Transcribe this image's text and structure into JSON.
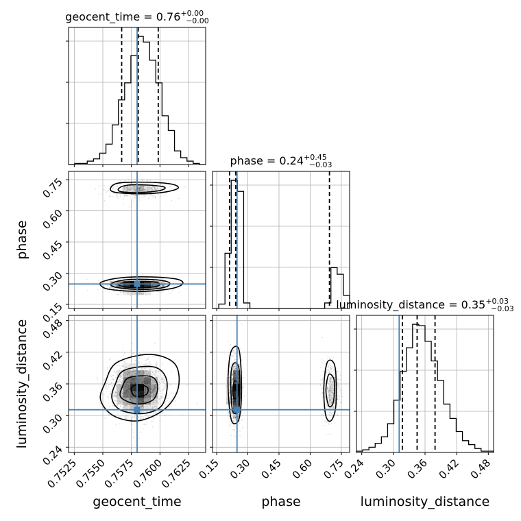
{
  "chart_data": {
    "type": "corner",
    "parameters": [
      {
        "name": "geocent_time",
        "label": "geocent_time",
        "title": "geocent_time = 0.76",
        "title_plus": "+0.00",
        "title_minus": "−0.00",
        "range": [
          0.752,
          0.764
        ],
        "ticks": [
          0.7525,
          0.755,
          0.7575,
          0.76,
          0.7625
        ],
        "tick_labels": [
          "0.7525",
          "0.7550",
          "0.7575",
          "0.7600",
          "0.7625"
        ],
        "truth": 0.758,
        "quantiles": [
          0.75665,
          0.7581,
          0.75985
        ],
        "hist_counts": [
          0,
          1,
          1,
          3,
          5,
          10,
          18,
          35,
          57,
          72,
          96,
          113,
          108,
          92,
          72,
          43,
          30,
          12,
          6,
          3,
          1,
          0
        ]
      },
      {
        "name": "phase",
        "label": "phase",
        "title": "phase = 0.24",
        "title_plus": "+0.45",
        "title_minus": "−0.03",
        "range": [
          0.13,
          0.79
        ],
        "ticks": [
          0.15,
          0.3,
          0.45,
          0.6,
          0.75
        ],
        "tick_labels": [
          "0.15",
          "0.30",
          "0.45",
          "0.60",
          "0.75"
        ],
        "truth": 0.248,
        "quantiles": [
          0.212,
          0.242,
          0.693
        ],
        "hist_counts": [
          0,
          4,
          50,
          116,
          106,
          5,
          0,
          0,
          0,
          0,
          0,
          0,
          0,
          0,
          0,
          0,
          0,
          0,
          5,
          37,
          31,
          12
        ]
      },
      {
        "name": "luminosity_distance",
        "label": "luminosity_distance",
        "title": "luminosity_distance = 0.35",
        "title_plus": "+0.03",
        "title_minus": "−0.03",
        "range": [
          0.23,
          0.49
        ],
        "ticks": [
          0.24,
          0.3,
          0.36,
          0.42,
          0.48
        ],
        "tick_labels": [
          "0.24",
          "0.30",
          "0.36",
          "0.42",
          "0.48"
        ],
        "truth": 0.311,
        "quantiles": [
          0.317,
          0.345,
          0.379
        ],
        "hist_counts": [
          1,
          2,
          4,
          7,
          12,
          22,
          40,
          62,
          80,
          98,
          97,
          85,
          70,
          55,
          37,
          26,
          16,
          9,
          6,
          3,
          1,
          1
        ]
      }
    ],
    "pairs": [
      {
        "x": "geocent_time",
        "y": "phase",
        "modes": [
          {
            "x": 0.7581,
            "y": 0.7,
            "sx": 0.0013,
            "sy": 0.02,
            "weight": 0.3
          },
          {
            "x": 0.758,
            "y": 0.24,
            "sx": 0.0013,
            "sy": 0.015,
            "weight": 0.7
          }
        ],
        "contours": [
          [
            [
              0.7564,
              0.708
            ],
            [
              0.7572,
              0.724
            ],
            [
              0.759,
              0.724
            ],
            [
              0.7604,
              0.714
            ],
            [
              0.76,
              0.698
            ],
            [
              0.7582,
              0.688
            ],
            [
              0.7566,
              0.692
            ]
          ],
          [
            [
              0.7557,
              0.712
            ],
            [
              0.7564,
              0.734
            ],
            [
              0.7586,
              0.738
            ],
            [
              0.7609,
              0.73
            ],
            [
              0.7616,
              0.71
            ],
            [
              0.7604,
              0.69
            ],
            [
              0.7582,
              0.682
            ],
            [
              0.756,
              0.69
            ]
          ],
          [
            [
              0.7565,
              0.248
            ],
            [
              0.7577,
              0.26
            ],
            [
              0.7594,
              0.258
            ],
            [
              0.76,
              0.246
            ],
            [
              0.7594,
              0.234
            ],
            [
              0.7578,
              0.23
            ],
            [
              0.7566,
              0.238
            ]
          ],
          [
            [
              0.7558,
              0.252
            ],
            [
              0.757,
              0.268
            ],
            [
              0.759,
              0.27
            ],
            [
              0.7606,
              0.26
            ],
            [
              0.7608,
              0.242
            ],
            [
              0.7598,
              0.226
            ],
            [
              0.7578,
              0.222
            ],
            [
              0.756,
              0.234
            ]
          ],
          [
            [
              0.755,
              0.26
            ],
            [
              0.7566,
              0.278
            ],
            [
              0.759,
              0.282
            ],
            [
              0.7614,
              0.272
            ],
            [
              0.762,
              0.25
            ],
            [
              0.761,
              0.226
            ],
            [
              0.7584,
              0.212
            ],
            [
              0.7556,
              0.222
            ],
            [
              0.7548,
              0.242
            ]
          ]
        ]
      },
      {
        "x": "geocent_time",
        "y": "luminosity_distance",
        "modes": [
          {
            "x": 0.7581,
            "y": 0.348,
            "sx": 0.0012,
            "sy": 0.027,
            "weight": 1.0
          }
        ],
        "contours": [
          [
            [
              0.7575,
              0.352
            ],
            [
              0.7581,
              0.359
            ],
            [
              0.7589,
              0.353
            ],
            [
              0.7588,
              0.34
            ],
            [
              0.7578,
              0.337
            ]
          ],
          [
            [
              0.7567,
              0.354
            ],
            [
              0.7573,
              0.372
            ],
            [
              0.7592,
              0.374
            ],
            [
              0.7598,
              0.356
            ],
            [
              0.7594,
              0.33
            ],
            [
              0.758,
              0.322
            ],
            [
              0.7566,
              0.334
            ]
          ],
          [
            [
              0.7561,
              0.36
            ],
            [
              0.7569,
              0.386
            ],
            [
              0.7595,
              0.392
            ],
            [
              0.7606,
              0.366
            ],
            [
              0.7602,
              0.32
            ],
            [
              0.7586,
              0.304
            ],
            [
              0.7566,
              0.31
            ],
            [
              0.7558,
              0.332
            ]
          ],
          [
            [
              0.7552,
              0.362
            ],
            [
              0.7562,
              0.4
            ],
            [
              0.7591,
              0.416
            ],
            [
              0.7613,
              0.398
            ],
            [
              0.7616,
              0.352
            ],
            [
              0.7604,
              0.312
            ],
            [
              0.7581,
              0.29
            ],
            [
              0.7559,
              0.3
            ],
            [
              0.7548,
              0.33
            ]
          ]
        ]
      },
      {
        "x": "phase",
        "y": "luminosity_distance",
        "modes": [
          {
            "x": 0.24,
            "y": 0.345,
            "sx": 0.015,
            "sy": 0.03,
            "weight": 0.72
          },
          {
            "x": 0.698,
            "y": 0.348,
            "sx": 0.02,
            "sy": 0.028,
            "weight": 0.28
          }
        ],
        "contours": [
          [
            [
              0.228,
              0.352
            ],
            [
              0.238,
              0.366
            ],
            [
              0.254,
              0.356
            ],
            [
              0.25,
              0.336
            ],
            [
              0.232,
              0.334
            ]
          ],
          [
            [
              0.218,
              0.37
            ],
            [
              0.23,
              0.398
            ],
            [
              0.256,
              0.392
            ],
            [
              0.262,
              0.346
            ],
            [
              0.254,
              0.31
            ],
            [
              0.226,
              0.31
            ]
          ],
          [
            [
              0.206,
              0.382
            ],
            [
              0.222,
              0.424
            ],
            [
              0.258,
              0.424
            ],
            [
              0.27,
              0.35
            ],
            [
              0.258,
              0.294
            ],
            [
              0.224,
              0.288
            ],
            [
              0.208,
              0.33
            ]
          ],
          [
            [
              0.676,
              0.348
            ],
            [
              0.69,
              0.378
            ],
            [
              0.716,
              0.366
            ],
            [
              0.712,
              0.326
            ],
            [
              0.69,
              0.318
            ]
          ],
          [
            [
              0.666,
              0.356
            ],
            [
              0.684,
              0.402
            ],
            [
              0.72,
              0.392
            ],
            [
              0.724,
              0.32
            ],
            [
              0.7,
              0.29
            ],
            [
              0.674,
              0.302
            ]
          ]
        ]
      }
    ],
    "grid": true,
    "truth_color": "#4682b4"
  }
}
